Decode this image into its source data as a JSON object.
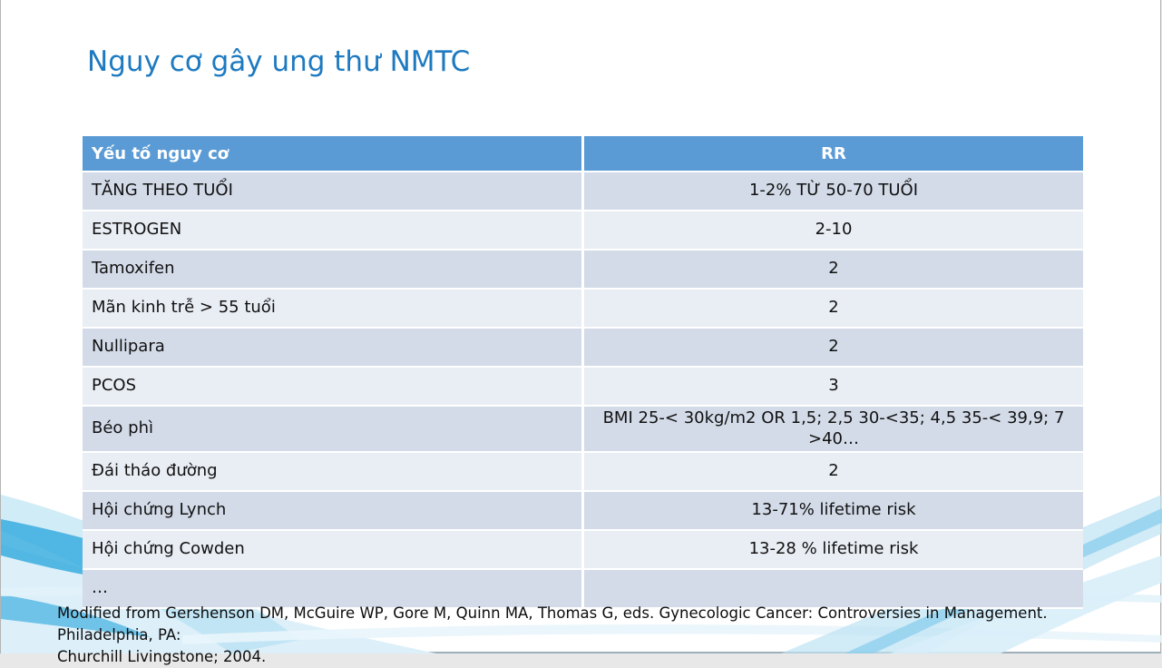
{
  "slide": {
    "title": "Nguy cơ gây ung thư NMTC",
    "footer": {
      "line1": "Modified from Gershenson DM, McGuire WP, Gore M, Quinn MA, Thomas G, eds. Gynecologic Cancer: Controversies in Management. Philadelphia, PA:",
      "line2": "Churchill Livingstone; 2004."
    }
  },
  "table": {
    "headers": [
      "Yếu tố nguy cơ",
      "RR"
    ],
    "rows": [
      {
        "factor": "TĂNG THEO TUỔI",
        "rr": "1-2% TỪ 50-70 TUỔI"
      },
      {
        "factor": "ESTROGEN",
        "rr": "2-10"
      },
      {
        "factor": "Tamoxifen",
        "rr": "2"
      },
      {
        "factor": "Mãn kinh trễ > 55 tuổi",
        "rr": "2"
      },
      {
        "factor": "Nullipara",
        "rr": "2"
      },
      {
        "factor": "PCOS",
        "rr": "3"
      },
      {
        "factor": "Béo phì",
        "rr": "BMI 25-< 30kg/m2 OR 1,5; 2,5 30-<35; 4,5 35-< 39,9; 7 >40…"
      },
      {
        "factor": "Đái tháo đường",
        "rr": "2"
      },
      {
        "factor": "Hội chứng Lynch",
        "rr": "13-71% lifetime risk"
      },
      {
        "factor": "Hội chứng Cowden",
        "rr": "13-28 % lifetime risk"
      },
      {
        "factor": "…",
        "rr": ""
      }
    ]
  },
  "colors": {
    "title_blue": "#1e7ac0",
    "table_header_bg": "#5b9bd5",
    "row_band_dark": "#d3dbe8",
    "row_band_light": "#e9edf4",
    "swoosh_cyan": "#2fa9dd"
  }
}
